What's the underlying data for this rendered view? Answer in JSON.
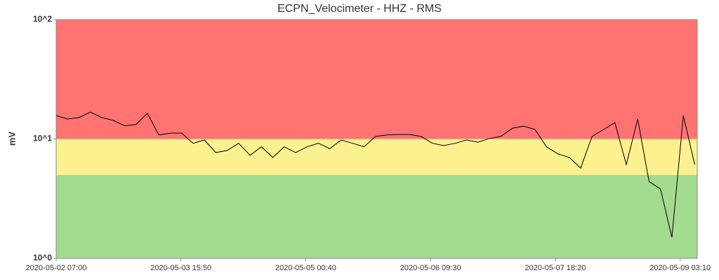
{
  "chart_data": {
    "type": "line",
    "title": "ECPN_Velocimeter - HHZ - RMS",
    "y_label": "mV",
    "log_y": true,
    "color": "#000000",
    "ylim": [
      1,
      100
    ],
    "yticks": [
      {
        "value": 1,
        "label": "10^0"
      },
      {
        "value": 10,
        "label": "10^1"
      },
      {
        "value": 100,
        "label": "10^2"
      }
    ],
    "xlim": [
      "2020-05-02 07:00",
      "2020-05-09 07:40"
    ],
    "xticks": [
      "2020-05-02 07:00",
      "2020-05-03 15:50",
      "2020-05-05 00:40",
      "2020-05-06 09:30",
      "2020-05-07 18:20",
      "2020-05-09 03:10"
    ],
    "bands": [
      {
        "from": 1,
        "to": 5,
        "color": "#a3db8f"
      },
      {
        "from": 5,
        "to": 10,
        "color": "#fbf28f"
      },
      {
        "from": 10,
        "to": 100,
        "color": "#ff7373"
      }
    ],
    "x": [
      "2020-05-02 07:00",
      "2020-05-02 10:00",
      "2020-05-02 13:00",
      "2020-05-02 16:00",
      "2020-05-02 19:00",
      "2020-05-02 22:00",
      "2020-05-03 01:00",
      "2020-05-03 04:00",
      "2020-05-03 07:00",
      "2020-05-03 10:00",
      "2020-05-03 13:00",
      "2020-05-03 16:00",
      "2020-05-03 19:00",
      "2020-05-03 22:00",
      "2020-05-04 01:00",
      "2020-05-04 04:00",
      "2020-05-04 07:00",
      "2020-05-04 10:00",
      "2020-05-04 13:00",
      "2020-05-04 16:00",
      "2020-05-04 19:00",
      "2020-05-04 22:00",
      "2020-05-05 01:00",
      "2020-05-05 04:00",
      "2020-05-05 07:00",
      "2020-05-05 10:00",
      "2020-05-05 13:00",
      "2020-05-05 16:00",
      "2020-05-05 19:00",
      "2020-05-05 22:00",
      "2020-05-06 01:00",
      "2020-05-06 04:00",
      "2020-05-06 07:00",
      "2020-05-06 10:00",
      "2020-05-06 13:00",
      "2020-05-06 16:00",
      "2020-05-06 19:00",
      "2020-05-06 22:00",
      "2020-05-07 01:00",
      "2020-05-07 04:00",
      "2020-05-07 07:00",
      "2020-05-07 10:00",
      "2020-05-07 13:00",
      "2020-05-07 16:00",
      "2020-05-07 19:00",
      "2020-05-07 22:00",
      "2020-05-08 01:00",
      "2020-05-08 04:00",
      "2020-05-08 07:00",
      "2020-05-08 10:00",
      "2020-05-08 13:00",
      "2020-05-08 16:00",
      "2020-05-08 19:00",
      "2020-05-08 22:00",
      "2020-05-09 01:00",
      "2020-05-09 04:00",
      "2020-05-09 07:00"
    ],
    "values": [
      15.7,
      14.7,
      15.1,
      16.8,
      15.1,
      14.3,
      12.9,
      13.2,
      16.4,
      10.8,
      11.2,
      11.2,
      9.2,
      9.8,
      7.7,
      8.0,
      9.2,
      7.3,
      8.6,
      7.0,
      8.6,
      7.7,
      8.6,
      9.2,
      8.3,
      9.8,
      9.2,
      8.6,
      10.5,
      10.8,
      10.9,
      10.9,
      10.5,
      9.2,
      8.8,
      9.2,
      9.8,
      9.4,
      10.1,
      10.5,
      12.3,
      12.8,
      12.0,
      8.6,
      7.5,
      7.0,
      5.7,
      10.5,
      12.0,
      13.7,
      6.1,
      14.7,
      4.4,
      3.8,
      1.5,
      15.7,
      6.1
    ]
  }
}
